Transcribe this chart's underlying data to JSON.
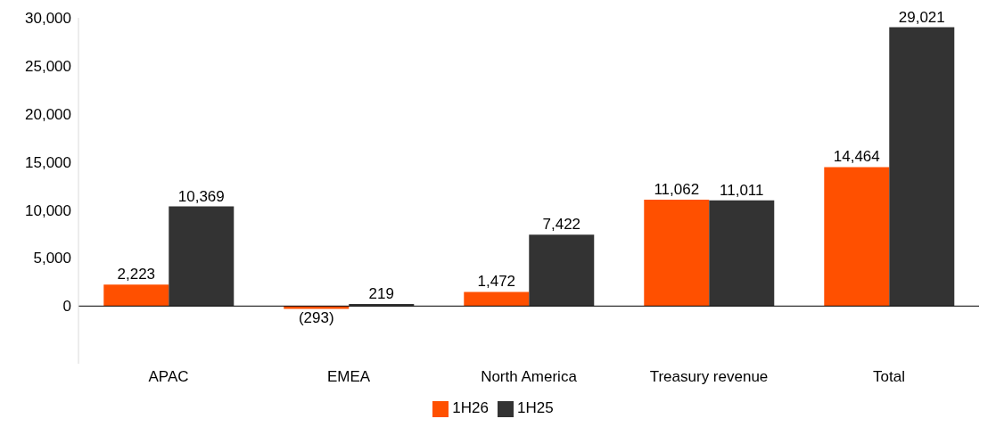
{
  "chart_data": {
    "type": "bar",
    "categories": [
      "APAC",
      "EMEA",
      "North America",
      "Treasury revenue",
      "Total"
    ],
    "series": [
      {
        "name": "1H26",
        "color": "#ff5000",
        "values": [
          2223,
          -293,
          1472,
          11062,
          14464
        ],
        "value_labels": [
          "2,223",
          "(293)",
          "1,472",
          "11,062",
          "14,464"
        ]
      },
      {
        "name": "1H25",
        "color": "#333333",
        "values": [
          10369,
          219,
          7422,
          11011,
          29021
        ],
        "value_labels": [
          "10,369",
          "219",
          "7,422",
          "11,011",
          "29,021"
        ]
      }
    ],
    "ylim": [
      -6000,
      30000
    ],
    "yticks": [
      {
        "value": 0,
        "label": "0"
      },
      {
        "value": 5000,
        "label": "5,000"
      },
      {
        "value": 10000,
        "label": "10,000"
      },
      {
        "value": 15000,
        "label": "15,000"
      },
      {
        "value": 20000,
        "label": "20,000"
      },
      {
        "value": 25000,
        "label": "25,000"
      },
      {
        "value": 30000,
        "label": "30,000"
      }
    ],
    "ref_lines": [
      {
        "axis": "y",
        "value": 0,
        "color": "#000000"
      }
    ],
    "grid": false,
    "legend": "bottom"
  }
}
